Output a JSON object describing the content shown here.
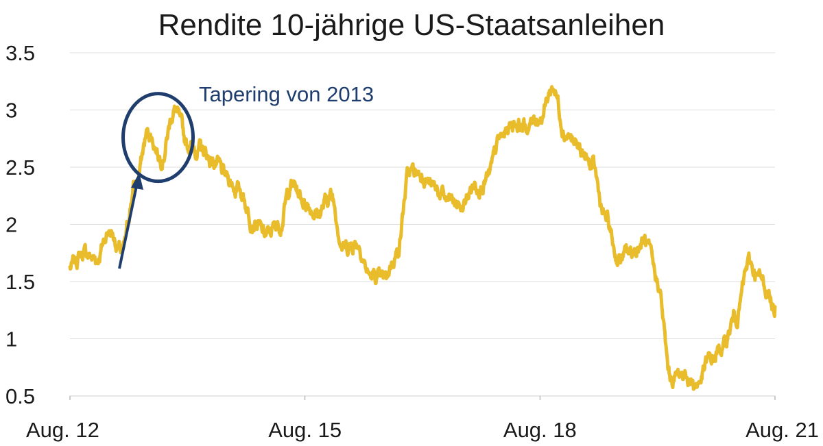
{
  "chart_data": {
    "type": "line",
    "title": "Rendite 10-jährige US-Staatsanleihen",
    "xlabel": "",
    "ylabel": "",
    "ylim": [
      0.5,
      3.5
    ],
    "yticks": [
      0.5,
      1,
      1.5,
      2,
      2.5,
      3,
      3.5
    ],
    "ytick_labels": [
      "0.5",
      "1",
      "1.5",
      "2",
      "2.5",
      "3",
      "3.5"
    ],
    "xtick_labels": [
      "Aug. 12",
      "Aug. 15",
      "Aug. 18",
      "Aug. 21"
    ],
    "xlim": [
      "2012-08",
      "2021-08"
    ],
    "grid": "horizontal",
    "line_color": "#E8BC2A",
    "annotation": {
      "text": "Tapering von 2013",
      "color": "#1F3E6E"
    },
    "series": [
      {
        "x": [
          "2012-08",
          "2012-10",
          "2012-12",
          "2013-02",
          "2013-04",
          "2013-06",
          "2013-08",
          "2013-10",
          "2013-12",
          "2014-02",
          "2014-04",
          "2014-06",
          "2014-08",
          "2014-10",
          "2014-12",
          "2015-02",
          "2015-04",
          "2015-06",
          "2015-08",
          "2015-10",
          "2015-12",
          "2016-02",
          "2016-04",
          "2016-06",
          "2016-08",
          "2016-10",
          "2016-12",
          "2017-02",
          "2017-04",
          "2017-06",
          "2017-08",
          "2017-10",
          "2017-12",
          "2018-02",
          "2018-04",
          "2018-06",
          "2018-08",
          "2018-10",
          "2018-12",
          "2019-02",
          "2019-04",
          "2019-06",
          "2019-08",
          "2019-10",
          "2019-12",
          "2020-02",
          "2020-04",
          "2020-06",
          "2020-08",
          "2020-10",
          "2020-12",
          "2021-02",
          "2021-04",
          "2021-06",
          "2021-08"
        ],
        "values": [
          1.62,
          1.75,
          1.7,
          1.95,
          1.75,
          2.35,
          2.8,
          2.6,
          3.0,
          2.7,
          2.65,
          2.55,
          2.4,
          2.3,
          2.05,
          1.9,
          2.0,
          2.35,
          2.2,
          2.1,
          2.25,
          1.8,
          1.85,
          1.55,
          1.5,
          1.75,
          2.45,
          2.45,
          2.3,
          2.2,
          2.15,
          2.35,
          2.4,
          2.75,
          2.9,
          2.85,
          2.95,
          3.2,
          2.8,
          2.65,
          2.5,
          2.05,
          1.7,
          1.75,
          1.85,
          1.5,
          0.65,
          0.7,
          0.6,
          0.8,
          0.92,
          1.2,
          1.65,
          1.5,
          1.28
        ]
      }
    ]
  }
}
